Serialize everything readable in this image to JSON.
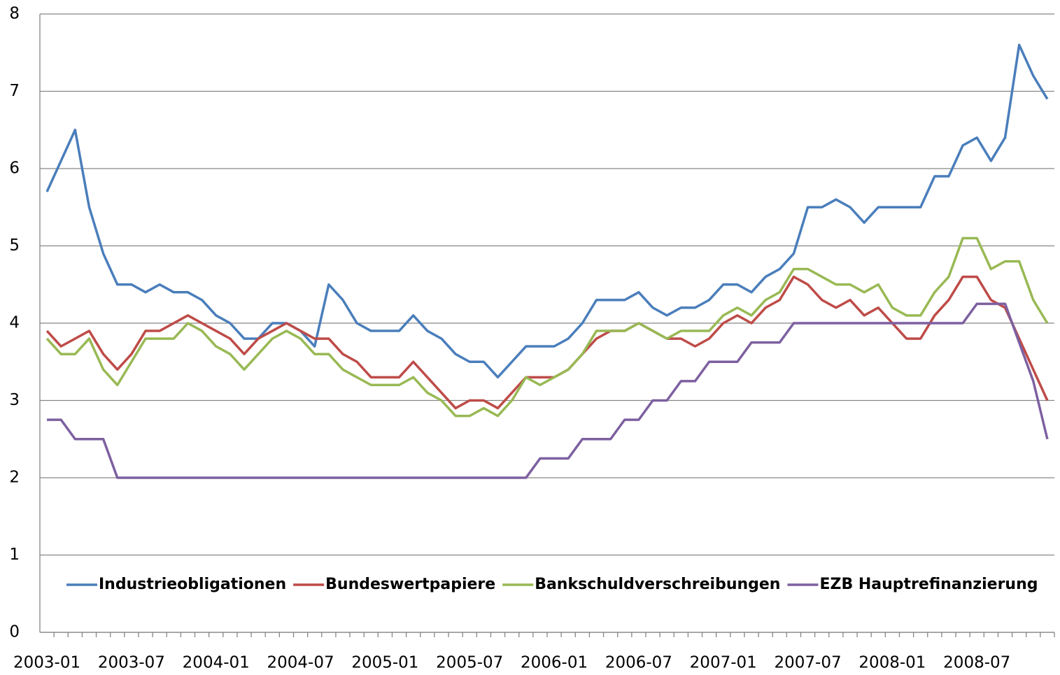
{
  "chart_data": {
    "type": "line",
    "categories": [
      "2003-01",
      null,
      null,
      null,
      null,
      null,
      "2003-07",
      null,
      null,
      null,
      null,
      null,
      "2004-01",
      null,
      null,
      null,
      null,
      null,
      "2004-07",
      null,
      null,
      null,
      null,
      null,
      "2005-01",
      null,
      null,
      null,
      null,
      null,
      "2005-07",
      null,
      null,
      null,
      null,
      null,
      "2006-01",
      null,
      null,
      null,
      null,
      null,
      "2006-07",
      null,
      null,
      null,
      null,
      null,
      "2007-01",
      null,
      null,
      null,
      null,
      null,
      "2007-07",
      null,
      null,
      null,
      null,
      null,
      "2008-01",
      null,
      null,
      null,
      null,
      null,
      "2008-07",
      null,
      null,
      null,
      null,
      null
    ],
    "series": [
      {
        "name": "Industrieobligationen",
        "color": "#4a7ebb",
        "values": [
          5.7,
          6.1,
          6.5,
          5.5,
          4.9,
          4.5,
          4.5,
          4.4,
          4.5,
          4.4,
          4.4,
          4.3,
          4.1,
          4.0,
          3.8,
          3.8,
          4.0,
          4.0,
          3.9,
          3.7,
          4.5,
          4.3,
          4.0,
          3.9,
          3.9,
          3.9,
          4.1,
          3.9,
          3.8,
          3.6,
          3.5,
          3.5,
          3.3,
          3.5,
          3.7,
          3.7,
          3.7,
          3.8,
          4.0,
          4.3,
          4.3,
          4.3,
          4.4,
          4.2,
          4.1,
          4.2,
          4.2,
          4.3,
          4.5,
          4.5,
          4.4,
          4.6,
          4.7,
          4.9,
          5.5,
          5.5,
          5.6,
          5.5,
          5.3,
          5.5,
          5.5,
          5.5,
          5.5,
          5.9,
          5.9,
          6.3,
          6.4,
          6.1,
          6.4,
          7.6,
          7.2,
          6.9
        ]
      },
      {
        "name": "Bundeswertpapiere",
        "color": "#be4b48",
        "values": [
          3.9,
          3.7,
          3.8,
          3.9,
          3.6,
          3.4,
          3.6,
          3.9,
          3.9,
          4.0,
          4.1,
          4.0,
          3.9,
          3.8,
          3.6,
          3.8,
          3.9,
          4.0,
          3.9,
          3.8,
          3.8,
          3.6,
          3.5,
          3.3,
          3.3,
          3.3,
          3.5,
          3.3,
          3.1,
          2.9,
          3.0,
          3.0,
          2.9,
          3.1,
          3.3,
          3.3,
          3.3,
          3.4,
          3.6,
          3.8,
          3.9,
          3.9,
          4.0,
          3.9,
          3.8,
          3.8,
          3.7,
          3.8,
          4.0,
          4.1,
          4.0,
          4.2,
          4.3,
          4.6,
          4.5,
          4.3,
          4.2,
          4.3,
          4.1,
          4.2,
          4.0,
          3.8,
          3.8,
          4.1,
          4.3,
          4.6,
          4.6,
          4.3,
          4.2,
          3.8,
          3.4,
          3.0
        ]
      },
      {
        "name": "Bankschuldverschreibungen",
        "color": "#98b954",
        "values": [
          3.8,
          3.6,
          3.6,
          3.8,
          3.4,
          3.2,
          3.5,
          3.8,
          3.8,
          3.8,
          4.0,
          3.9,
          3.7,
          3.6,
          3.4,
          3.6,
          3.8,
          3.9,
          3.8,
          3.6,
          3.6,
          3.4,
          3.3,
          3.2,
          3.2,
          3.2,
          3.3,
          3.1,
          3.0,
          2.8,
          2.8,
          2.9,
          2.8,
          3.0,
          3.3,
          3.2,
          3.3,
          3.4,
          3.6,
          3.9,
          3.9,
          3.9,
          4.0,
          3.9,
          3.8,
          3.9,
          3.9,
          3.9,
          4.1,
          4.2,
          4.1,
          4.3,
          4.4,
          4.7,
          4.7,
          4.6,
          4.5,
          4.5,
          4.4,
          4.5,
          4.2,
          4.1,
          4.1,
          4.4,
          4.6,
          5.1,
          5.1,
          4.7,
          4.8,
          4.8,
          4.3,
          4.0
        ]
      },
      {
        "name": "EZB Hauptrefinanzierung",
        "color": "#7d60a0",
        "values": [
          2.75,
          2.75,
          2.5,
          2.5,
          2.5,
          2.0,
          2.0,
          2.0,
          2.0,
          2.0,
          2.0,
          2.0,
          2.0,
          2.0,
          2.0,
          2.0,
          2.0,
          2.0,
          2.0,
          2.0,
          2.0,
          2.0,
          2.0,
          2.0,
          2.0,
          2.0,
          2.0,
          2.0,
          2.0,
          2.0,
          2.0,
          2.0,
          2.0,
          2.0,
          2.0,
          2.25,
          2.25,
          2.25,
          2.5,
          2.5,
          2.5,
          2.75,
          2.75,
          3.0,
          3.0,
          3.25,
          3.25,
          3.5,
          3.5,
          3.5,
          3.75,
          3.75,
          3.75,
          4.0,
          4.0,
          4.0,
          4.0,
          4.0,
          4.0,
          4.0,
          4.0,
          4.0,
          4.0,
          4.0,
          4.0,
          4.0,
          4.25,
          4.25,
          4.25,
          3.75,
          3.25,
          2.5
        ]
      }
    ],
    "ylim": [
      0,
      8
    ],
    "yticks": [
      0,
      1,
      2,
      3,
      4,
      5,
      6,
      7,
      8
    ],
    "grid": true,
    "legend": "bottom"
  }
}
